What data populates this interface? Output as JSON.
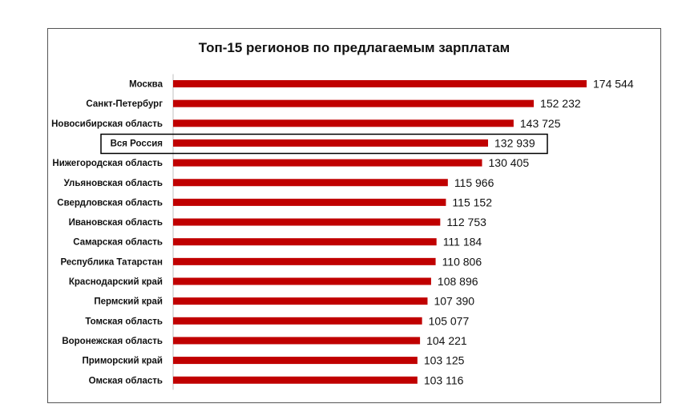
{
  "chart_data": {
    "type": "bar",
    "orientation": "horizontal",
    "title": "Топ-15 регионов по предлагаемым зарплатам",
    "xlabel": "",
    "ylabel": "",
    "categories": [
      "Москва",
      "Санкт-Петербург",
      "Новосибирская область",
      "Вся Россия",
      "Нижегородская область",
      "Ульяновская область",
      "Свердловская область",
      "Ивановская область",
      "Самарская область",
      "Республика Татарстан",
      "Краснодарский край",
      "Пермский край",
      "Томская область",
      "Воронежская область",
      "Приморский край",
      "Омская область"
    ],
    "values": [
      174544,
      152232,
      143725,
      132939,
      130405,
      115966,
      115152,
      112753,
      111184,
      110806,
      108896,
      107390,
      105077,
      104221,
      103125,
      103116
    ],
    "value_labels": [
      "174 544",
      "152 232",
      "143 725",
      "132 939",
      "130 405",
      "115 966",
      "115 152",
      "112 753",
      "111 184",
      "110 806",
      "108 896",
      "107 390",
      "105 077",
      "104 221",
      "103 125",
      "103 116"
    ],
    "highlighted_category": "Вся Россия",
    "xlim": [
      0,
      174544
    ],
    "grid": false,
    "legend": "none",
    "bar_color": "#c00000",
    "highlight_box_color": "#000000"
  }
}
